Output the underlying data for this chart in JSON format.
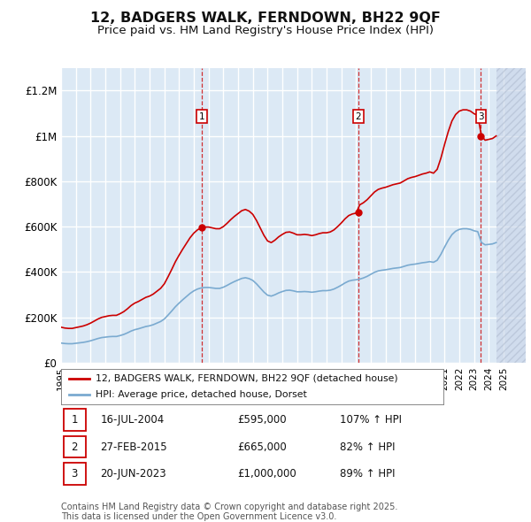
{
  "title": "12, BADGERS WALK, FERNDOWN, BH22 9QF",
  "subtitle": "Price paid vs. HM Land Registry's House Price Index (HPI)",
  "title_fontsize": 11.5,
  "subtitle_fontsize": 9.5,
  "ylim": [
    0,
    1300000
  ],
  "yticks": [
    0,
    200000,
    400000,
    600000,
    800000,
    1000000,
    1200000
  ],
  "ytick_labels": [
    "£0",
    "£200K",
    "£400K",
    "£600K",
    "£800K",
    "£1M",
    "£1.2M"
  ],
  "background_color": "#ffffff",
  "plot_bg_color": "#dce9f5",
  "grid_color": "#ffffff",
  "red_color": "#cc0000",
  "blue_color": "#7aaad0",
  "sale1_date": "16-JUL-2004",
  "sale1_price": 595000,
  "sale1_pct": "107%",
  "sale1_year": 2004.54,
  "sale2_date": "27-FEB-2015",
  "sale2_price": 665000,
  "sale2_pct": "82%",
  "sale2_year": 2015.16,
  "sale3_date": "20-JUN-2023",
  "sale3_price": 1000000,
  "sale3_pct": "89%",
  "sale3_year": 2023.47,
  "legend_label_red": "12, BADGERS WALK, FERNDOWN, BH22 9QF (detached house)",
  "legend_label_blue": "HPI: Average price, detached house, Dorset",
  "footer": "Contains HM Land Registry data © Crown copyright and database right 2025.\nThis data is licensed under the Open Government Licence v3.0.",
  "hpi_index": [
    100.0,
    97.7,
    96.6,
    96.6,
    98.9,
    101.1,
    103.4,
    106.9,
    111.5,
    117.2,
    123.0,
    127.6,
    129.9,
    132.2,
    133.3,
    133.3,
    137.9,
    143.7,
    151.7,
    160.9,
    167.8,
    172.4,
    178.2,
    183.9,
    187.4,
    193.1,
    201.1,
    209.2,
    221.8,
    241.4,
    262.1,
    283.9,
    302.3,
    319.5,
    335.6,
    351.7,
    364.4,
    373.6,
    379.3,
    381.6,
    381.6,
    379.3,
    376.9,
    376.9,
    382.8,
    391.9,
    402.3,
    411.5,
    419.5,
    427.6,
    431.0,
    426.4,
    417.2,
    400.0,
    379.3,
    358.6,
    342.5,
    337.9,
    344.8,
    354.0,
    360.9,
    366.7,
    367.8,
    364.4,
    359.8,
    359.8,
    360.9,
    359.8,
    357.5,
    359.8,
    363.2,
    365.5,
    365.5,
    367.8,
    373.6,
    382.8,
    393.1,
    404.6,
    413.8,
    418.4,
    420.7,
    424.1,
    429.9,
    437.9,
    448.3,
    458.6,
    465.5,
    468.9,
    471.3,
    474.7,
    478.2,
    480.5,
    482.8,
    488.5,
    494.3,
    497.7,
    500.0,
    503.4,
    506.9,
    509.2,
    512.6,
    509.2,
    519.5,
    549.4,
    586.2,
    620.7,
    649.4,
    666.7,
    675.9,
    679.3,
    679.3,
    675.9,
    668.9,
    664.4,
    609.2,
    597.7,
    599.9,
    602.3,
    609.2
  ],
  "xmin": 1995.0,
  "xmax": 2026.5,
  "xtick_start": 1995,
  "xtick_end": 2026
}
